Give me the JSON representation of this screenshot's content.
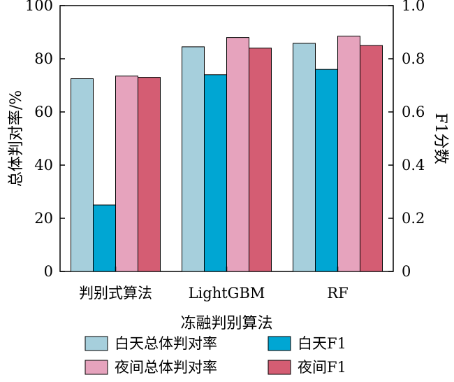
{
  "chart_data": {
    "type": "bar",
    "xlabel": "冻融判别算法",
    "ylabel_left": "总体判对率/%",
    "ylabel_right": "F1分数",
    "ylim_left": [
      0,
      100
    ],
    "ylim_right": [
      0,
      1.0
    ],
    "yticks_left": [
      "0",
      "20",
      "40",
      "60",
      "80",
      "100"
    ],
    "yticks_right": [
      "0",
      "0.2",
      "0.4",
      "0.6",
      "0.8",
      "1.0"
    ],
    "categories": [
      "判别式算法",
      "LightGBM",
      "RF"
    ],
    "series": [
      {
        "name": "白天总体判对率",
        "axis": "left",
        "color": "#a6cfdc",
        "values": [
          72.5,
          84.5,
          85.8
        ]
      },
      {
        "name": "白天F1",
        "axis": "right",
        "color": "#00a6d3",
        "values": [
          0.25,
          0.74,
          0.76
        ]
      },
      {
        "name": "夜间总体判对率",
        "axis": "left",
        "color": "#e6a3bd",
        "values": [
          73.5,
          88.0,
          88.5
        ]
      },
      {
        "name": "夜间F1",
        "axis": "right",
        "color": "#d45d73",
        "values": [
          0.73,
          0.84,
          0.85
        ]
      }
    ],
    "legend": "bottom",
    "grid": false
  }
}
